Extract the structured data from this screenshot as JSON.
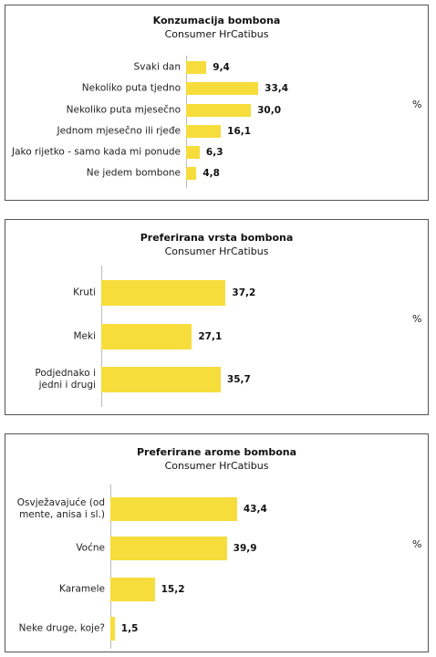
{
  "chart_data": [
    {
      "type": "bar",
      "orientation": "horizontal",
      "title": "Konzumacija bombona",
      "subtitle": "Consumer HrCatibus",
      "unit_label": "%",
      "categories": [
        "Svaki dan",
        "Nekoliko puta tjedno",
        "Nekoliko puta mjesečno",
        "Jednom mjesečno ili rjeđe",
        "Jako rijetko - samo kada mi ponude",
        "Ne jedem bombone"
      ],
      "values": [
        9.4,
        33.4,
        30.0,
        16.1,
        6.3,
        4.8
      ],
      "value_labels": [
        "9,4",
        "33,4",
        "30,0",
        "16,1",
        "6,3",
        "4,8"
      ],
      "color": "#f7dd3b",
      "xlim": [
        0,
        100
      ]
    },
    {
      "type": "bar",
      "orientation": "horizontal",
      "title": "Preferirana vrsta bombona",
      "subtitle": "Consumer HrCatibus",
      "unit_label": "%",
      "categories": [
        "Kruti",
        "Meki",
        "Podjednako i jedni i drugi"
      ],
      "values": [
        37.2,
        27.1,
        35.7
      ],
      "value_labels": [
        "37,2",
        "27,1",
        "35,7"
      ],
      "color": "#f7dd3b",
      "xlim": [
        0,
        90
      ]
    },
    {
      "type": "bar",
      "orientation": "horizontal",
      "title": "Preferirane arome bombona",
      "subtitle": "Consumer HrCatibus",
      "unit_label": "%",
      "categories": [
        "Osvježavajuće (od mente, anisa i sl.)",
        "Voćne",
        "Karamele",
        "Neke druge, koje?"
      ],
      "values": [
        43.4,
        39.9,
        15.2,
        1.5
      ],
      "value_labels": [
        "43,4",
        "39,9",
        "15,2",
        "1,5"
      ],
      "color": "#f7dd3b",
      "xlim": [
        0,
        100
      ]
    }
  ]
}
